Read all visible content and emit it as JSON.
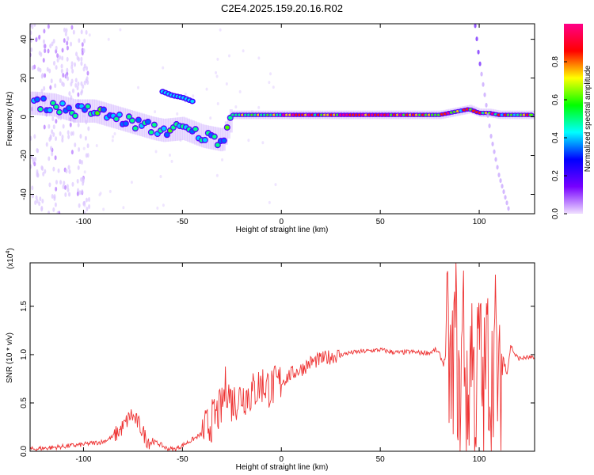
{
  "title": "C2E4.2025.159.20.16.R02",
  "colors": {
    "snr_line": "#ee3333",
    "axis": "#000000",
    "band": "#ff3355"
  },
  "chart_data": [
    {
      "type": "heatmap",
      "xlabel": "Height of straight line (km)",
      "ylabel": "Frequency (Hz)",
      "xlim": [
        -127,
        128
      ],
      "ylim": [
        -50,
        48
      ],
      "xticks": [
        "-100",
        "-50",
        "0",
        "50",
        "100"
      ],
      "xtick_values": [
        -100,
        -50,
        0,
        50,
        100
      ],
      "yticks": [
        "-40",
        "-20",
        "0",
        "20",
        "40"
      ],
      "ytick_values": [
        -40,
        -20,
        0,
        20,
        40
      ],
      "colorbar": {
        "label": "Normalized spectral amplitude",
        "range": [
          0,
          1
        ],
        "ticks": [
          "0.0",
          "0.2",
          "0.4",
          "0.6",
          "0.8"
        ],
        "tick_values": [
          0.0,
          0.2,
          0.4,
          0.6,
          0.8
        ],
        "colormap": [
          "#f0e0ff",
          "#7700ff",
          "#0000ff",
          "#00ffff",
          "#00ff00",
          "#ffff00",
          "#ff0000",
          "#ff0088"
        ]
      },
      "ridge": {
        "x": [
          -125,
          -115,
          -105,
          -95,
          -85,
          -75,
          -65,
          -60,
          -50,
          -40,
          -30,
          -25,
          -15,
          0,
          20,
          50,
          80,
          95,
          100,
          105,
          110,
          128
        ],
        "freq": [
          7,
          6,
          3,
          3,
          0,
          -3,
          -6,
          -7,
          -6,
          -10,
          -12,
          1,
          1,
          1,
          1,
          1,
          1,
          4,
          2,
          2,
          1,
          1
        ]
      },
      "secondary_ridge": {
        "x": [
          -60,
          -55,
          -50,
          -45
        ],
        "freq": [
          13,
          11,
          10,
          8
        ]
      },
      "steep_trace": {
        "x": [
          98,
          100,
          103,
          106,
          110,
          115
        ],
        "freq": [
          47,
          30,
          10,
          -10,
          -30,
          -48
        ]
      }
    },
    {
      "type": "line",
      "xlabel": "Height of straight line (km)",
      "ylabel": "SNR (10 * v/v)",
      "y_multiplier": "(x10",
      "y_exponent": "4",
      "xlim": [
        -127,
        128
      ],
      "ylim": [
        0,
        1.95
      ],
      "xticks": [
        "-100",
        "-50",
        "0",
        "50",
        "100"
      ],
      "xtick_values": [
        -100,
        -50,
        0,
        50,
        100
      ],
      "yticks": [
        "0.0",
        "0.5",
        "1.0",
        "1.5"
      ],
      "ytick_values": [
        0,
        0.5,
        1.0,
        1.5
      ],
      "series": [
        {
          "x": [
            -127,
            -115,
            -100,
            -90,
            -85,
            -80,
            -76,
            -72,
            -68,
            -62,
            -58,
            -54,
            -50,
            -45,
            -40,
            -35,
            -30,
            -28,
            -25,
            -20,
            -15,
            -10,
            -5,
            0,
            5,
            10,
            15,
            20,
            25,
            30,
            35,
            40,
            45,
            50,
            55,
            60,
            65,
            70,
            75,
            78,
            80,
            82,
            84,
            86,
            88,
            90,
            92,
            94,
            96,
            98,
            100,
            102,
            104,
            106,
            108,
            110,
            112,
            114,
            116,
            118,
            120,
            124,
            128
          ],
          "y": [
            0.02,
            0.04,
            0.07,
            0.1,
            0.15,
            0.25,
            0.38,
            0.28,
            0.12,
            0.08,
            0.03,
            0.02,
            0.06,
            0.12,
            0.18,
            0.32,
            0.45,
            0.7,
            0.5,
            0.58,
            0.6,
            0.7,
            0.65,
            0.72,
            0.8,
            0.85,
            0.92,
            0.95,
            0.98,
            1.0,
            1.02,
            1.03,
            1.04,
            1.05,
            1.03,
            1.02,
            1.03,
            1.02,
            1.02,
            1.05,
            1.0,
            0.9,
            1.1,
            0.6,
            1.4,
            0.3,
            1.5,
            0.2,
            1.3,
            0.4,
            1.2,
            0.5,
            1.1,
            0.6,
            1.2,
            0.5,
            1.0,
            0.8,
            1.1,
            1.0,
            0.96,
            0.97,
            0.96
          ]
        }
      ]
    }
  ]
}
